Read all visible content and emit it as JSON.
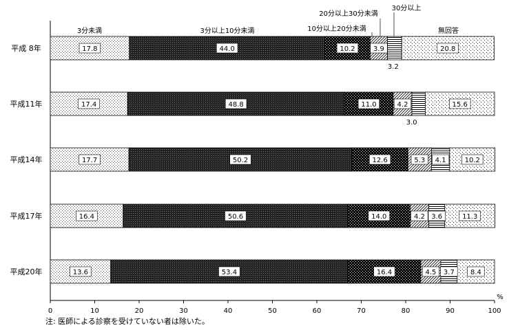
{
  "chart_data": {
    "type": "bar",
    "orientation": "horizontal",
    "stacked": true,
    "categories": [
      "平成 8年",
      "平成11年",
      "平成14年",
      "平成17年",
      "平成20年"
    ],
    "series": [
      {
        "name": "3分未満",
        "values": [
          17.8,
          17.4,
          17.7,
          16.4,
          13.6
        ]
      },
      {
        "name": "3分以上10分未満",
        "values": [
          44.0,
          48.8,
          50.2,
          50.6,
          53.4
        ]
      },
      {
        "name": "10分以上20分未満",
        "values": [
          10.2,
          11.0,
          12.6,
          14.0,
          16.4
        ]
      },
      {
        "name": "20分以上30分未満",
        "values": [
          3.9,
          4.2,
          5.3,
          4.2,
          4.5
        ]
      },
      {
        "name": "30分以上",
        "values": [
          3.2,
          3.0,
          4.1,
          3.6,
          3.7
        ]
      },
      {
        "name": "無回答",
        "values": [
          20.8,
          15.6,
          10.2,
          11.3,
          8.4
        ]
      }
    ],
    "value_labels": [
      [
        "17.8",
        "44.0",
        "10.2",
        "3.9",
        "3.2",
        "20.8"
      ],
      [
        "17.4",
        "48.8",
        "11.0",
        "4.2",
        "3.0",
        "15.6"
      ],
      [
        "17.7",
        "50.2",
        "12.6",
        "5.3",
        "4.1",
        "10.2"
      ],
      [
        "16.4",
        "50.6",
        "14.0",
        "4.2",
        "3.6",
        "11.3"
      ],
      [
        "13.6",
        "53.4",
        "16.4",
        "4.5",
        "3.7",
        "8.4"
      ]
    ],
    "xlim": [
      0,
      100
    ],
    "xticks": [
      0,
      10,
      20,
      30,
      40,
      50,
      60,
      70,
      80,
      90,
      100
    ],
    "unit": "%",
    "grid": false,
    "legend": "labels above the first bar",
    "note": "注: 医師による診察を受けていない者は除いた。"
  }
}
